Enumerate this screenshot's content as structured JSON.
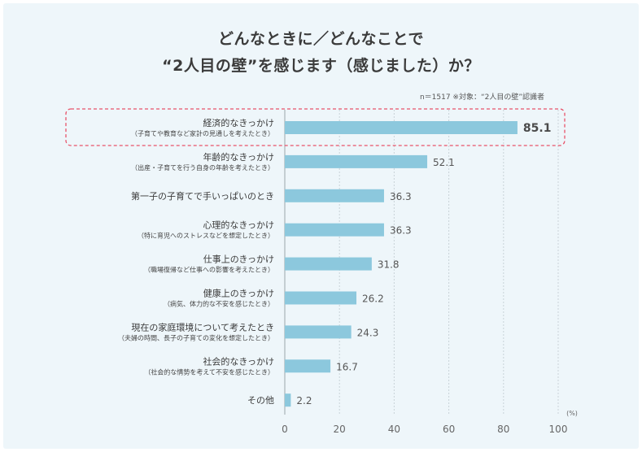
{
  "chart_data": {
    "type": "bar",
    "orientation": "horizontal",
    "title_line1": "どんなときに／どんなことで",
    "title_line2": "“2人目の壁”を感じます（感じました）か？",
    "note": "n＝1517  ※対象：“2人目の壁”認識者",
    "unit": "(%)",
    "xlim": [
      0,
      100
    ],
    "ticks": [
      0,
      20,
      40,
      60,
      80,
      100
    ],
    "grid": true,
    "bar_color": "#8cc8dd",
    "highlight_color": "#e8546a",
    "highlight_index": 0,
    "categories": [
      {
        "label": "経済的なきっかけ",
        "sub": "（子育てや教育など家計の見通しを考えたとき）"
      },
      {
        "label": "年齢的なきっかけ",
        "sub": "（出産・子育てを行う自身の年齢を考えたとき）"
      },
      {
        "label": "第一子の子育てで手いっぱいのとき",
        "sub": ""
      },
      {
        "label": "心理的なきっかけ",
        "sub": "（特に育児へのストレスなどを想定したとき）"
      },
      {
        "label": "仕事上のきっかけ",
        "sub": "（職場復帰など仕事への影響を考えたとき）"
      },
      {
        "label": "健康上のきっかけ",
        "sub": "（病気、体力的な不安を感じたとき）"
      },
      {
        "label": "現在の家庭環境について考えたとき",
        "sub": "（夫婦の時間、長子の子育ての変化を想定したとき）"
      },
      {
        "label": "社会的なきっかけ",
        "sub": "（社会的な情勢を考えて不安を感じたとき）"
      },
      {
        "label": "その他",
        "sub": ""
      }
    ],
    "values": [
      85.1,
      52.1,
      36.3,
      36.3,
      31.8,
      26.2,
      24.3,
      16.7,
      2.2
    ]
  }
}
